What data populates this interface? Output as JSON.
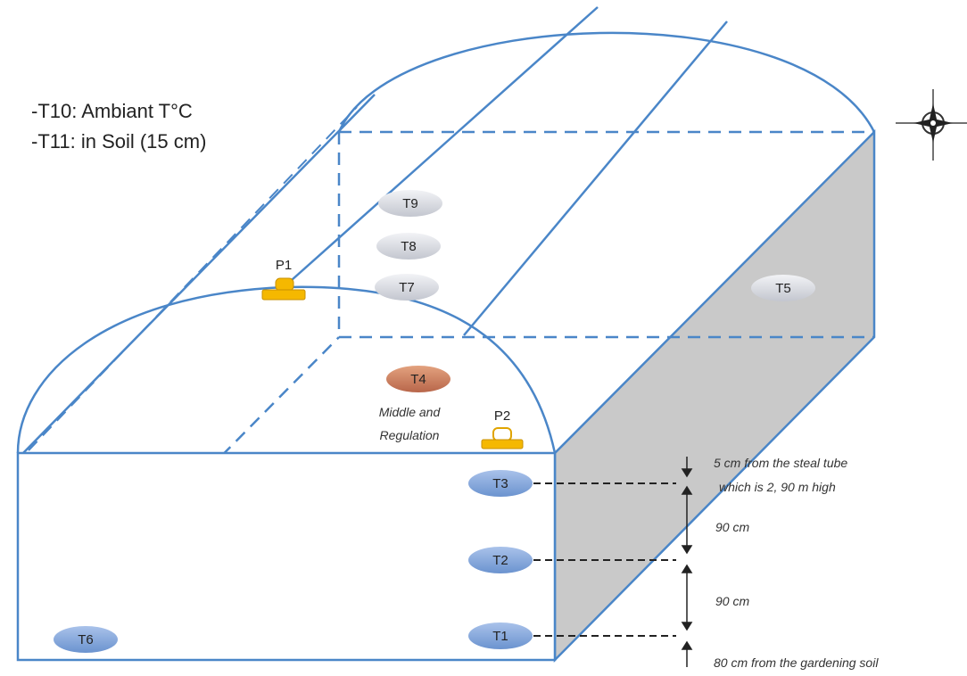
{
  "notes": {
    "line1": "-T10: Ambiant T°C",
    "line2": "-T11: in Soil (15 cm)"
  },
  "sensors": {
    "t1": "T1",
    "t2": "T2",
    "t3": "T3",
    "t4": "T4",
    "t5": "T5",
    "t6": "T6",
    "t7": "T7",
    "t8": "T8",
    "t9": "T9"
  },
  "probes": {
    "p1": "P1",
    "p2": "P2"
  },
  "captions": {
    "middle_line1": "Middle and",
    "middle_line2": "Regulation",
    "dist_top_line1": "5 cm from the steal tube",
    "dist_top_line2": "which is 2, 90 m high",
    "dist_mid1": "90 cm",
    "dist_mid2": "90 cm",
    "dist_bottom": "80 cm from the gardening soil"
  },
  "colors": {
    "frame": "#4a86c8",
    "side_face": "#c9c9c9",
    "sensor_blue": "#7ea3d8",
    "sensor_gray": "#d4d6dc",
    "sensor_orange": "#c98060",
    "probe_yellow": "#f5b800"
  },
  "icons": {
    "compass": "compass-rose-icon"
  }
}
